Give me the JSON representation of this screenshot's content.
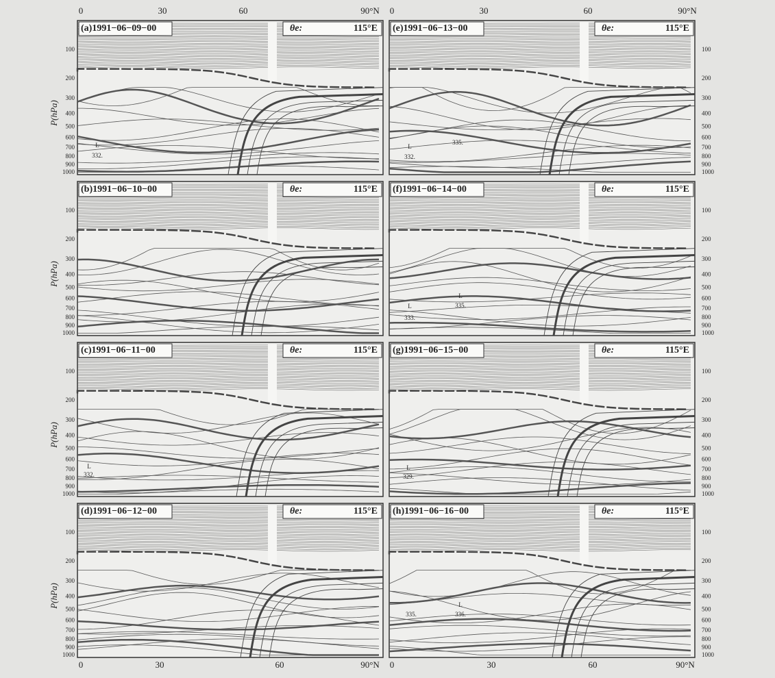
{
  "y_axis_title": "P(hPa)",
  "pressure_levels": [
    100,
    200,
    300,
    400,
    500,
    600,
    700,
    800,
    900,
    1000
  ],
  "top_axis_left": [
    "0",
    "30",
    "60",
    "90°N"
  ],
  "top_axis_right": [
    "0",
    "30",
    "60",
    "90°N"
  ],
  "bottom_axis_left": [
    "0",
    "30",
    "60",
    "90°N"
  ],
  "bottom_axis_right": [
    "0",
    "30",
    "60",
    "90°N"
  ],
  "panels": [
    {
      "label": "(a)1991−06−09−00",
      "variable": "θe:",
      "longitude": "115°E",
      "annotations": [
        "L",
        "332."
      ]
    },
    {
      "label": "(b)1991−06−10−00",
      "variable": "θe:",
      "longitude": "115°E",
      "annotations": []
    },
    {
      "label": "(c)1991−06−11−00",
      "variable": "θe:",
      "longitude": "115°E",
      "annotations": [
        "L",
        "332."
      ]
    },
    {
      "label": "(d)1991−06−12−00",
      "variable": "θe:",
      "longitude": "115°E",
      "annotations": []
    },
    {
      "label": "(e)1991−06−13−00",
      "variable": "θe:",
      "longitude": "115°E",
      "annotations": [
        "L",
        "332.",
        "335."
      ]
    },
    {
      "label": "(f)1991−06−14−00",
      "variable": "θe:",
      "longitude": "115°E",
      "annotations": [
        "L",
        "333.",
        "L",
        "335."
      ]
    },
    {
      "label": "(g)1991−06−15−00",
      "variable": "θe:",
      "longitude": "115°E",
      "annotations": [
        "L",
        "329."
      ]
    },
    {
      "label": "(h)1991−06−16−00",
      "variable": "θe:",
      "longitude": "115°E",
      "annotations": [
        "335.",
        "L",
        "336."
      ]
    }
  ]
}
